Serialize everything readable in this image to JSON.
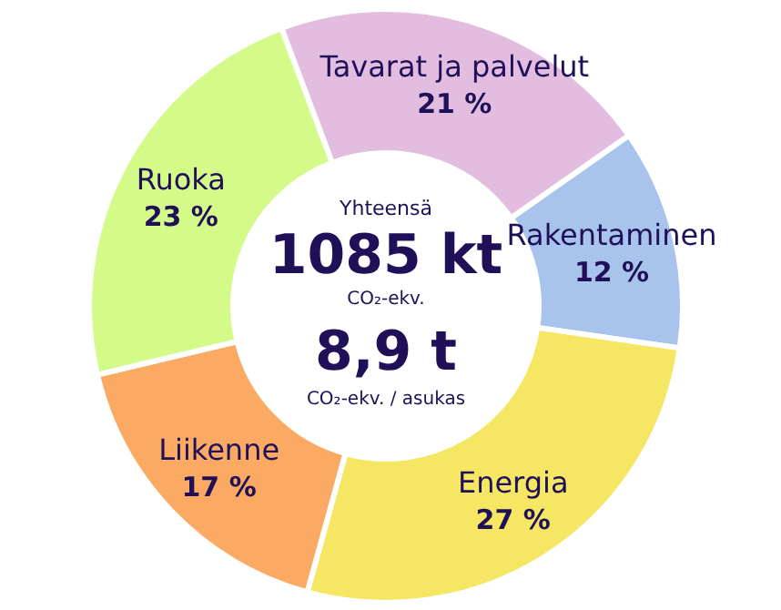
{
  "chart_data": {
    "type": "donut",
    "categories": [
      "Tavarat ja palvelut",
      "Rakentaminen",
      "Energia",
      "Liikenne",
      "Ruoka"
    ],
    "values": [
      21,
      12,
      27,
      17,
      23
    ],
    "value_labels": [
      "21 %",
      "12 %",
      "27 %",
      "17 %",
      "23 %"
    ],
    "colors": [
      "#e2bde0",
      "#a8c4ec",
      "#f5e663",
      "#fbaa63",
      "#d4fa8a"
    ],
    "annotations": [
      "Yhteensä",
      "1085 kt",
      "CO₂-ekv.",
      "8,9 t",
      "CO₂-ekv. / asukas"
    ]
  }
}
